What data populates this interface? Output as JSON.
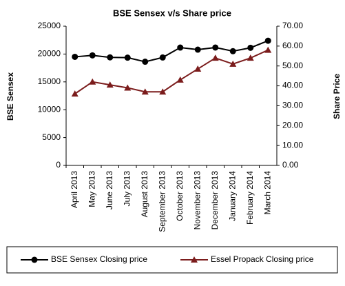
{
  "chart_data": {
    "type": "line",
    "title": "BSE Sensex  v/s Share price",
    "categories": [
      "April 2013",
      "May 2013",
      "June 2013",
      "July 2013",
      "August 2013",
      "September 2013",
      "October 2013",
      "November 2013",
      "December 2013",
      "January 2014",
      "February 2014",
      "March 2014"
    ],
    "series": [
      {
        "name": "BSE Sensex Closing price",
        "color": "#000000",
        "marker": "circle",
        "values": [
          19500,
          19760,
          19400,
          19350,
          18620,
          19380,
          21160,
          20790,
          21170,
          20510,
          21120,
          22390
        ]
      },
      {
        "name": "Essel Propack Closing price",
        "color": "#7b1c1c",
        "marker": "triangle",
        "axis": "y2",
        "values": [
          36,
          42,
          40.5,
          39,
          37,
          37,
          43,
          48.5,
          54,
          51,
          54,
          58
        ]
      }
    ],
    "ylabel": "BSE Sensex",
    "y2label": "Share Price",
    "ylim": [
      0,
      25000
    ],
    "yticks": [
      0,
      5000,
      10000,
      15000,
      20000,
      25000
    ],
    "y2lim": [
      0,
      70
    ],
    "y2ticks": [
      {
        "value": 0,
        "label": "0.00"
      },
      {
        "value": 10,
        "label": "10.00"
      },
      {
        "value": 20,
        "label": "20.00"
      },
      {
        "value": 30,
        "label": "30.00"
      },
      {
        "value": 40,
        "label": "40.00"
      },
      {
        "value": 50,
        "label": "50.00"
      },
      {
        "value": 60,
        "label": "60.00"
      },
      {
        "value": 70,
        "label": "70.00"
      }
    ],
    "grid": false,
    "legend": "bottom"
  }
}
